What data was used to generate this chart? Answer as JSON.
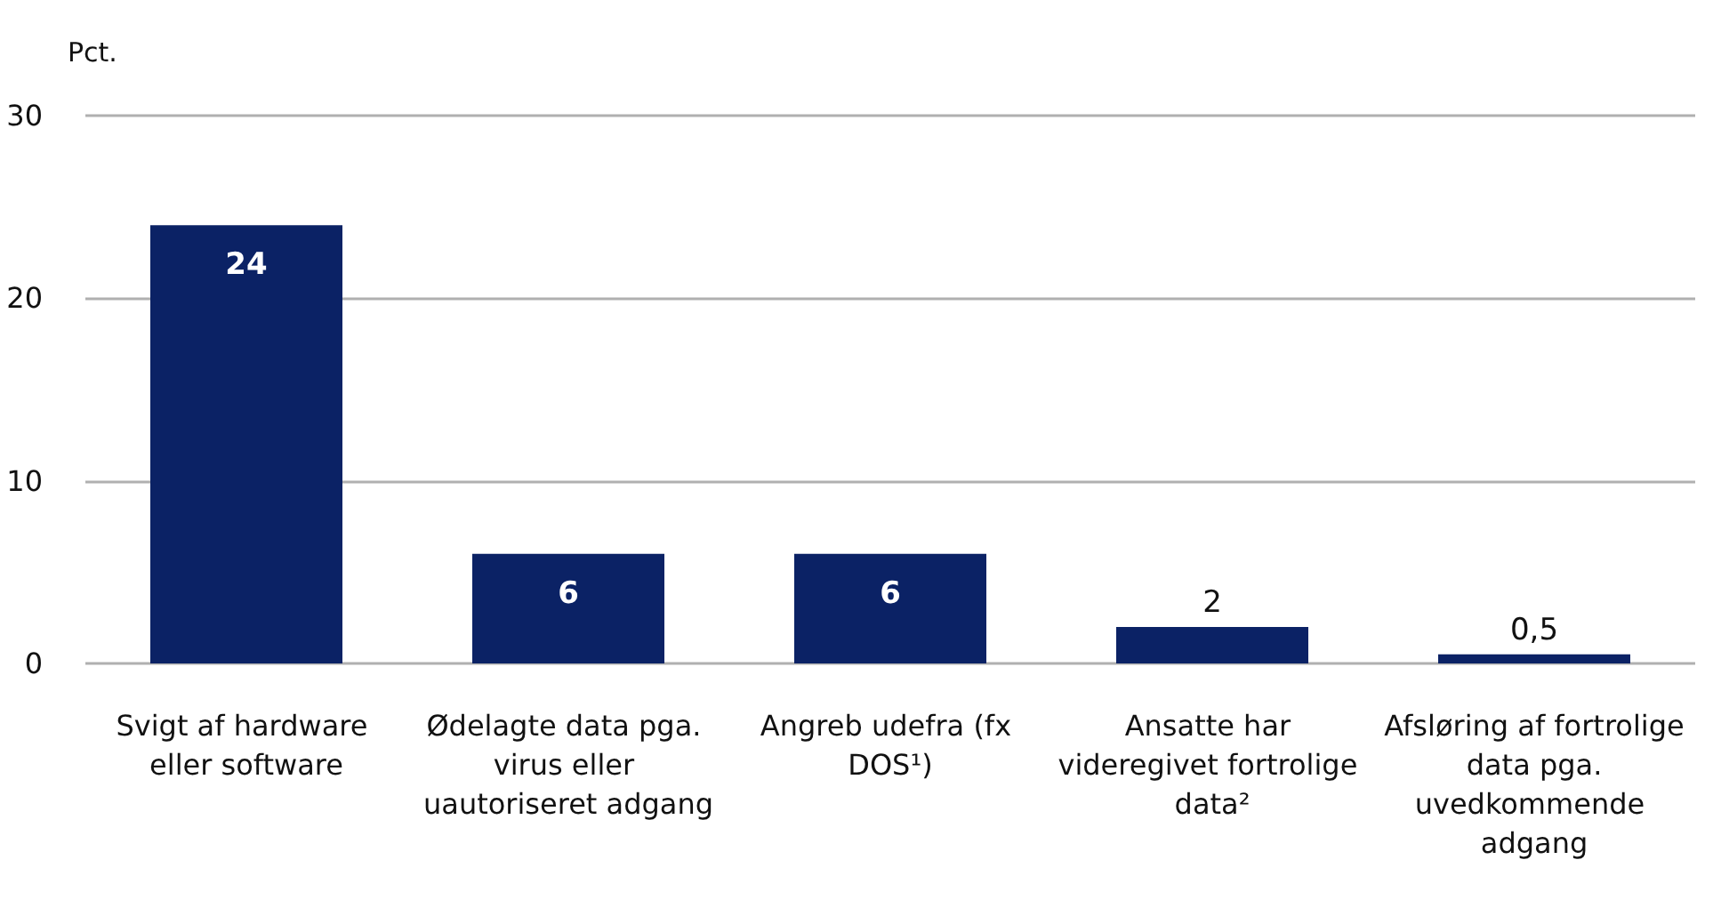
{
  "chart_data": {
    "type": "bar",
    "ylabel": "Pct.",
    "categories": [
      "Svigt af hardware eller software",
      "Ødelagte data pga. virus eller uautoriseret adgang",
      "Angreb udefra (fx DOS¹)",
      "Ansatte har videregivet fortrolige data²",
      "Afsløring af fortrolige data pga. uvedkommende adgang"
    ],
    "values": [
      24,
      6,
      6,
      2,
      0.5
    ],
    "value_labels": [
      "24",
      "6",
      "6",
      "2",
      "0,5"
    ],
    "color": "#0b2265",
    "ylim": [
      0,
      30
    ],
    "yticks": [
      0,
      10,
      20,
      30
    ],
    "grid": "y"
  }
}
